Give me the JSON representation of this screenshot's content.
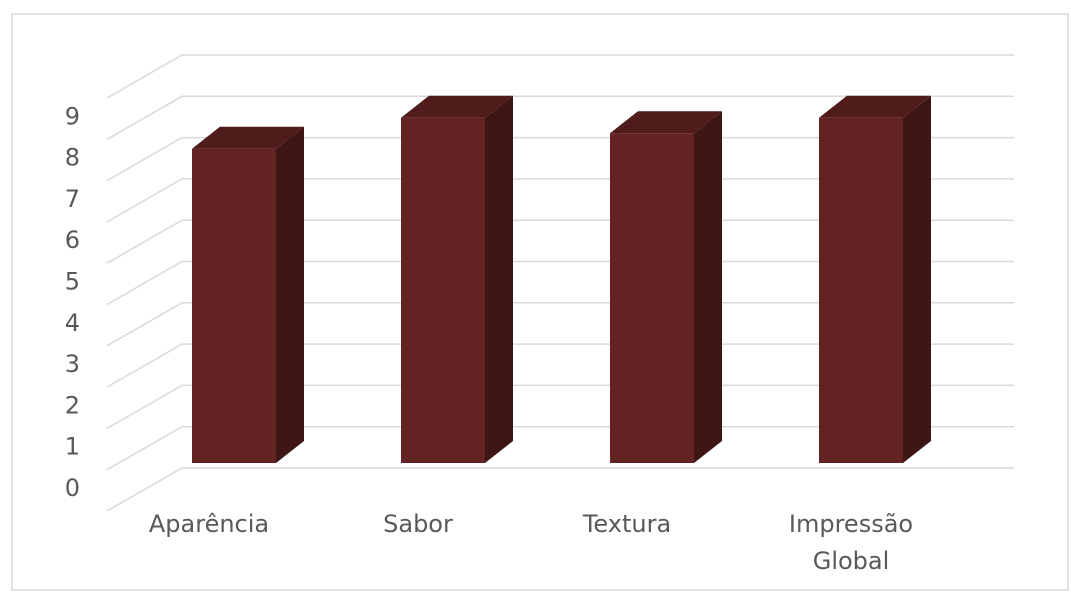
{
  "chart_data": {
    "type": "bar",
    "style": "3d-column",
    "categories": [
      "Aparência",
      "Sabor",
      "Textura",
      "Impressão Global"
    ],
    "category_display": [
      [
        "Aparência"
      ],
      [
        "Sabor"
      ],
      [
        "Textura"
      ],
      [
        "Impressão",
        "Global"
      ]
    ],
    "values": [
      7.1,
      7.8,
      7.45,
      7.8
    ],
    "y_ticks": [
      "0",
      "1",
      "2",
      "3",
      "4",
      "5",
      "6",
      "7",
      "8",
      "9"
    ],
    "ylim": [
      0,
      10
    ],
    "grid": true,
    "legend": "none",
    "colors": {
      "bar_front": "#632323",
      "bar_top": "#4f1b1b",
      "bar_side": "#3f1616",
      "grid": "#d9d9d9",
      "text": "#595959",
      "border": "#d9d9d9"
    }
  }
}
